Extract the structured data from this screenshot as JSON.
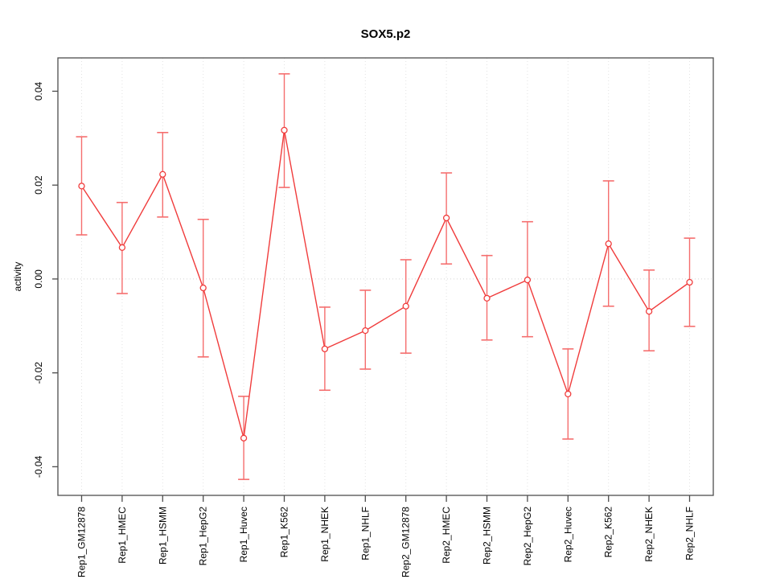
{
  "chart_data": {
    "type": "line",
    "title": "SOX5.p2",
    "xlabel": "",
    "ylabel": "activity",
    "categories": [
      "Rep1_GM12878",
      "Rep1_HMEC",
      "Rep1_HSMM",
      "Rep1_HepG2",
      "Rep1_Huvec",
      "Rep1_K562",
      "Rep1_NHEK",
      "Rep1_NHLF",
      "Rep2_GM12878",
      "Rep2_HMEC",
      "Rep2_HSMM",
      "Rep2_HepG2",
      "Rep2_Huvec",
      "Rep2_K562",
      "Rep2_NHEK",
      "Rep2_NHLF"
    ],
    "series": [
      {
        "name": "activity",
        "values": [
          0.0198,
          0.0067,
          0.0223,
          -0.0019,
          -0.0339,
          0.0317,
          -0.0149,
          -0.011,
          -0.0058,
          0.013,
          -0.0041,
          -0.0002,
          -0.0245,
          0.0075,
          -0.0069,
          -0.0007
        ],
        "ci_low": [
          0.0094,
          -0.0031,
          0.0132,
          -0.0166,
          -0.0427,
          0.0195,
          -0.0237,
          -0.0192,
          -0.0158,
          0.0032,
          -0.013,
          -0.0123,
          -0.0341,
          -0.0058,
          -0.0153,
          -0.0101
        ],
        "ci_high": [
          0.0303,
          0.0163,
          0.0312,
          0.0127,
          -0.025,
          0.0437,
          -0.006,
          -0.0024,
          0.0041,
          0.0226,
          0.005,
          0.0122,
          -0.0149,
          0.0209,
          0.0019,
          0.0087
        ]
      }
    ],
    "ytick_values": [
      -0.04,
      -0.02,
      0.0,
      0.02,
      0.04
    ],
    "ytick_labels": [
      "-0.04",
      "-0.02",
      "0.00",
      "0.02",
      "0.04"
    ],
    "ylim": [
      -0.0461,
      0.0471
    ],
    "x_pad": 0.585,
    "grid": "vertical-dotted-per-category, dotted-zero-line, no-legend",
    "legend": null,
    "colors": {
      "line": "#f03c3c",
      "point": "#f03c3c",
      "errorbar": "#f56e6e",
      "frame": "#4d4d4d",
      "grid": "#e2e2e2",
      "zero_line": "#d4d4d4"
    }
  }
}
